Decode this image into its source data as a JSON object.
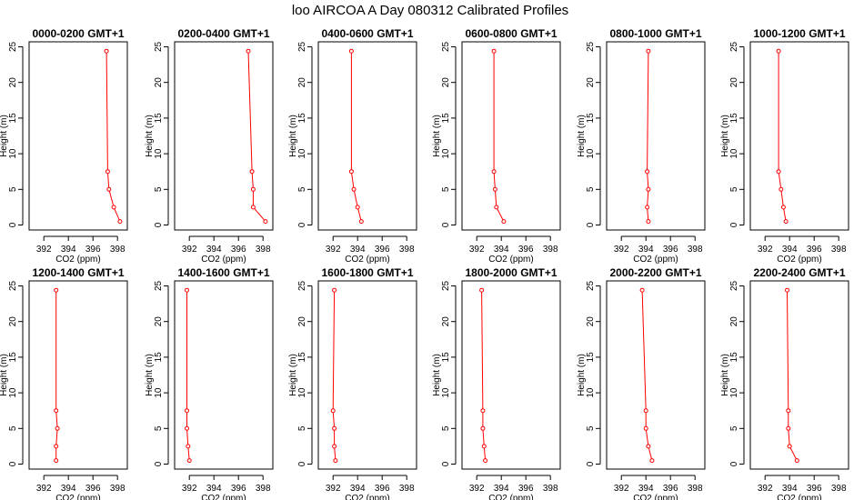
{
  "figure_title": "loo AIRCOA A  Day 080312  Calibrated Profiles",
  "chart_data": {
    "type": "line",
    "layout": "2 rows x 6 panels",
    "xlabel": "CO2 (ppm)",
    "ylabel": "Height (m)",
    "xlim": [
      390.8,
      398.8
    ],
    "ylim": [
      -0.7,
      25.7
    ],
    "xticks": [
      392,
      394,
      396,
      398
    ],
    "yticks": [
      0,
      5,
      10,
      15,
      20,
      25
    ],
    "series_color": "#ff0000",
    "heights": [
      24.4,
      7.5,
      5.0,
      2.5,
      0.5
    ],
    "panels": [
      {
        "title": "0000-0200 GMT+1",
        "co2": [
          397.1,
          397.2,
          397.3,
          397.7,
          398.2
        ]
      },
      {
        "title": "0200-0400 GMT+1",
        "co2": [
          396.8,
          397.1,
          397.2,
          397.2,
          398.2
        ]
      },
      {
        "title": "0400-0600 GMT+1",
        "co2": [
          393.5,
          393.5,
          393.7,
          394.0,
          394.3
        ]
      },
      {
        "title": "0600-0800 GMT+1",
        "co2": [
          393.4,
          393.4,
          393.5,
          393.6,
          394.2
        ]
      },
      {
        "title": "0800-1000 GMT+1",
        "co2": [
          394.2,
          394.1,
          394.2,
          394.1,
          394.2
        ]
      },
      {
        "title": "1000-1200 GMT+1",
        "co2": [
          393.1,
          393.1,
          393.3,
          393.5,
          393.7
        ]
      },
      {
        "title": "1200-1400 GMT+1",
        "co2": [
          393.0,
          393.0,
          393.1,
          393.0,
          393.0
        ]
      },
      {
        "title": "1400-1600 GMT+1",
        "co2": [
          391.8,
          391.8,
          391.8,
          391.9,
          392.0
        ]
      },
      {
        "title": "1600-1800 GMT+1",
        "co2": [
          392.1,
          392.0,
          392.1,
          392.1,
          392.2
        ]
      },
      {
        "title": "1800-2000 GMT+1",
        "co2": [
          392.4,
          392.5,
          392.5,
          392.6,
          392.7
        ]
      },
      {
        "title": "2000-2200 GMT+1",
        "co2": [
          393.7,
          394.0,
          394.0,
          394.2,
          394.5
        ]
      },
      {
        "title": "2200-2400 GMT+1",
        "co2": [
          393.8,
          393.9,
          393.9,
          394.0,
          394.6
        ]
      }
    ]
  }
}
